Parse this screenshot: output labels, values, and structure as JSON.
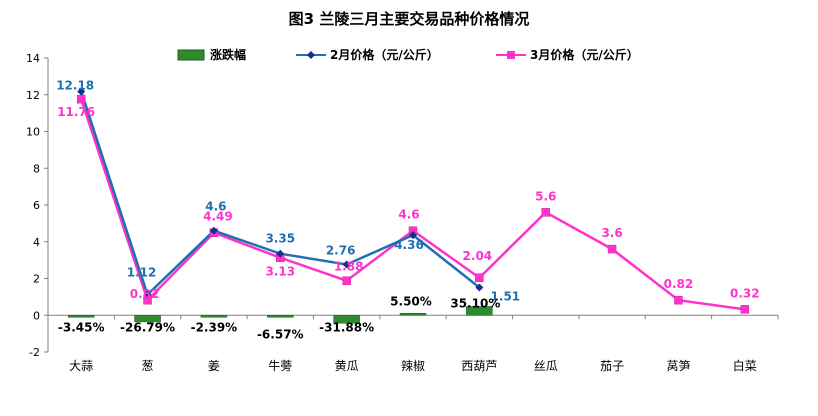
{
  "chart_data": {
    "type": "line",
    "title": "图3  兰陵三月主要交易品种价格情况",
    "categories": [
      "大蒜",
      "葱",
      "姜",
      "牛蒡",
      "黄瓜",
      "辣椒",
      "西葫芦",
      "丝瓜",
      "茄子",
      "莴笋",
      "白菜"
    ],
    "ylim": [
      -2,
      14
    ],
    "yticks": [
      -2,
      0,
      2,
      4,
      6,
      8,
      10,
      12,
      14
    ],
    "grid": false,
    "legend_position": "top",
    "series": [
      {
        "name": "涨跌幅",
        "kind": "bar",
        "color": "#2E8B2E",
        "values": [
          -0.0345,
          -0.2679,
          -0.0239,
          -0.0657,
          -0.3188,
          0.055,
          0.351,
          null,
          null,
          null,
          null
        ],
        "labels": [
          "-3.45%",
          "-26.79%",
          "-2.39%",
          "-6.57%",
          "-31.88%",
          "5.50%",
          "35.10%",
          "",
          "",
          "",
          ""
        ]
      },
      {
        "name": "2月价格（元/公斤）",
        "kind": "line",
        "color": "#1F77B4",
        "marker": "diamond",
        "values": [
          12.18,
          1.12,
          4.6,
          3.35,
          2.76,
          4.36,
          1.51,
          null,
          null,
          null,
          null
        ]
      },
      {
        "name": "3月价格（元/公斤）",
        "kind": "line",
        "color": "#FF33CC",
        "marker": "square",
        "values": [
          11.76,
          0.82,
          4.49,
          3.13,
          1.88,
          4.6,
          2.04,
          5.6,
          3.6,
          0.82,
          0.32
        ]
      }
    ]
  },
  "colors": {
    "feb_line": "#1F6FB5",
    "feb_marker": "#1A2E8C",
    "mar_line": "#FF33CC",
    "bar_fill": "#2E8B2E",
    "feb_label": "#1F6FB5",
    "mar_label": "#FF33CC",
    "axis": "#808080"
  }
}
